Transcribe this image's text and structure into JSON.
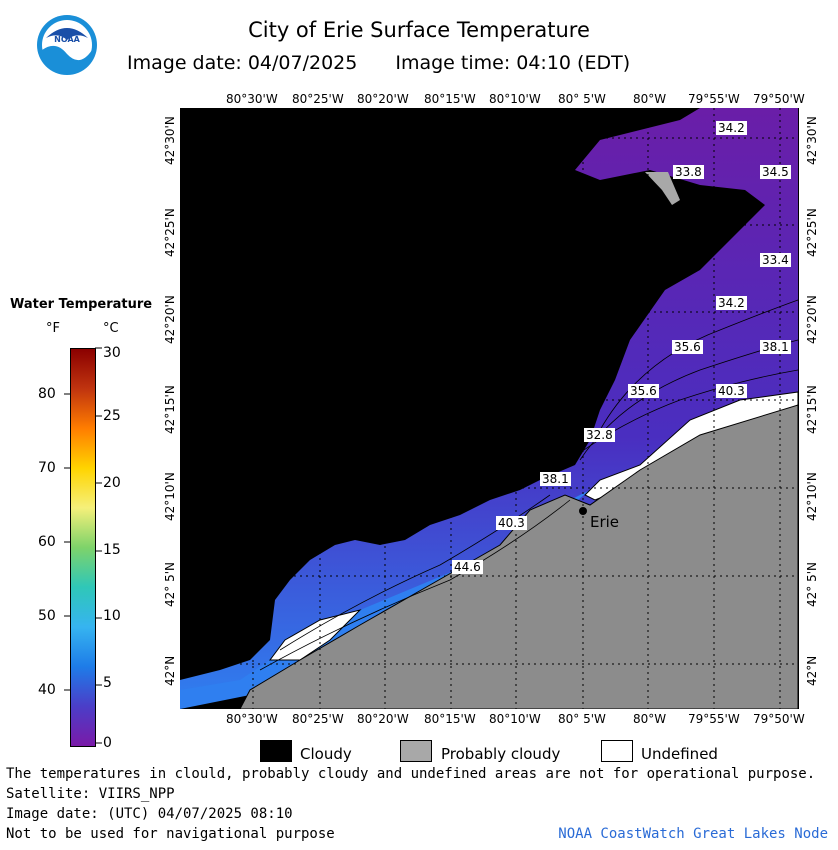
{
  "title": "City of Erie Surface Temperature",
  "image_date_label": "Image date: 04/07/2025",
  "image_time_label": "Image time: 04:10 (EDT)",
  "logo_text": "NOAA",
  "longitude_ticks": [
    "80°30'W",
    "80°25'W",
    "80°20'W",
    "80°15'W",
    "80°10'W",
    "80° 5'W",
    "80°W",
    "79°55'W",
    "79°50'W"
  ],
  "latitude_ticks": [
    "42°30'N",
    "42°25'N",
    "42°20'N",
    "42°15'N",
    "42°10'N",
    "42° 5'N",
    "42°N"
  ],
  "legend": {
    "title": "Water Temperature",
    "unit_f": "°F",
    "unit_c": "°C",
    "f_labels": [
      "80",
      "70",
      "60",
      "50",
      "40"
    ],
    "c_labels": [
      "30",
      "25",
      "20",
      "15",
      "10",
      "5",
      "0"
    ]
  },
  "temperature_labels": [
    "34.2",
    "33.8",
    "34.5",
    "33.4",
    "34.2",
    "35.6",
    "38.1",
    "35.6",
    "40.3",
    "32.8",
    "38.1",
    "40.3",
    "44.6"
  ],
  "city_label": "Erie",
  "key": {
    "cloudy": "Cloudy",
    "probably_cloudy": "Probably cloudy",
    "undefined": "Undefined"
  },
  "footer": {
    "disclaimer": "The temperatures in clould, probably cloudy and undefined areas are not for operational purpose.",
    "satellite": "Satellite: VIIRS_NPP",
    "utc_date": "Image date: (UTC) 04/07/2025  08:10",
    "nav_warning": "Not to be used for navigational purpose",
    "credit": "NOAA CoastWatch Great Lakes Node"
  },
  "colors": {
    "cloudy": "#000000",
    "probably_cloudy": "#a8a8a8",
    "undefined": "#ffffff",
    "land": "#8c8c8c",
    "water_cold": "#6a2aa8",
    "water_warm": "#2f7ff0",
    "credit": "#2a6bd6"
  }
}
